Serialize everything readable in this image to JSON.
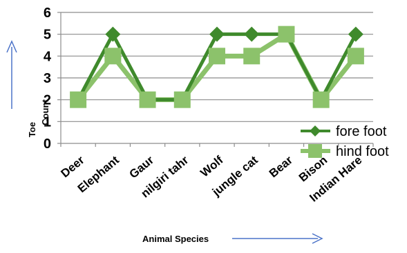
{
  "chart_data": {
    "type": "line",
    "categories": [
      "Deer",
      "Elephant",
      "Gaur",
      "nilgiri tahr",
      "Wolf",
      "jungle cat",
      "Bear",
      "Bison",
      "Indian Hare"
    ],
    "series": [
      {
        "name": "fore foot",
        "values": [
          2,
          5,
          2,
          2,
          5,
          5,
          5,
          2,
          5
        ],
        "color": "#3f8a2c",
        "marker": "diamond"
      },
      {
        "name": "hind foot",
        "values": [
          2,
          4,
          2,
          2,
          4,
          4,
          5,
          2,
          4
        ],
        "color": "#8cc26b",
        "marker": "square"
      }
    ],
    "ylim": [
      0,
      6
    ],
    "yticks": [
      "0",
      "1",
      "2",
      "3",
      "4",
      "5",
      "6"
    ],
    "ylabel_line1": "Toe",
    "ylabel_line2": "Count",
    "xlabel": "Animal Species",
    "grid": true,
    "legend": "bottom-right",
    "arrow_color": "#4a72c8"
  }
}
